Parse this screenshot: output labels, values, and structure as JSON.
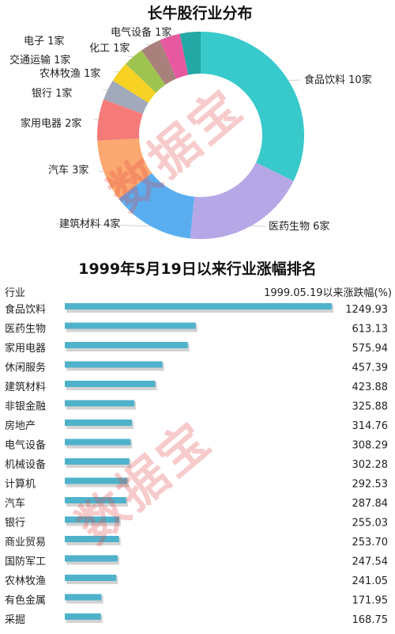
{
  "watermark": "数据宝",
  "chart_data": [
    {
      "type": "pie",
      "title": "长牛股行业分布",
      "slices": [
        {
          "label": "食品饮料 10家",
          "value": 10,
          "color": "#38c9cb"
        },
        {
          "label": "医药生物 6家",
          "value": 6,
          "color": "#b6a7e6"
        },
        {
          "label": "建筑材料 4家",
          "value": 4,
          "color": "#5aaef0"
        },
        {
          "label": "汽车  3家",
          "value": 3,
          "color": "#fba970"
        },
        {
          "label": "家用电器 2家",
          "value": 2,
          "color": "#f47b79"
        },
        {
          "label": "银行  1家",
          "value": 1,
          "color": "#a1a9ba"
        },
        {
          "label": "农林牧渔 1家",
          "value": 1,
          "color": "#f7d224"
        },
        {
          "label": "交通运输 1家",
          "value": 1,
          "color": "#9ec44f"
        },
        {
          "label": "化工  1家",
          "value": 1,
          "color": "#a9817c"
        },
        {
          "label": "电子  1家",
          "value": 1,
          "color": "#e6599f"
        },
        {
          "label": "电气设备 1家",
          "value": 1,
          "color": "#23a8a5"
        }
      ]
    },
    {
      "type": "bar",
      "title": "1999年5月19日以来行业涨幅排名",
      "col_header_left": "行业",
      "col_header_right": "1999.05.19以来涨跌幅(%)",
      "categories": [
        "食品饮料",
        "医药生物",
        "家用电器",
        "休闲服务",
        "建筑材料",
        "非银金融",
        "房地产",
        "电气设备",
        "机械设备",
        "计算机",
        "汽车",
        "银行",
        "商业贸易",
        "国防军工",
        "农林牧渔",
        "有色金属",
        "采掘"
      ],
      "values": [
        1249.93,
        613.13,
        575.94,
        457.39,
        423.88,
        325.88,
        314.76,
        308.29,
        302.28,
        292.53,
        287.84,
        255.03,
        253.7,
        247.54,
        241.05,
        171.95,
        168.75
      ],
      "value_labels": [
        "1249.93",
        "613.13",
        "575.94",
        "457.39",
        "423.88",
        "325.88",
        "314.76",
        "308.29",
        "302.28",
        "292.53",
        "287.84",
        "255.03",
        "253.70",
        "247.54",
        "241.05",
        "171.95",
        "168.75"
      ],
      "color": "#4fb2cb"
    }
  ]
}
